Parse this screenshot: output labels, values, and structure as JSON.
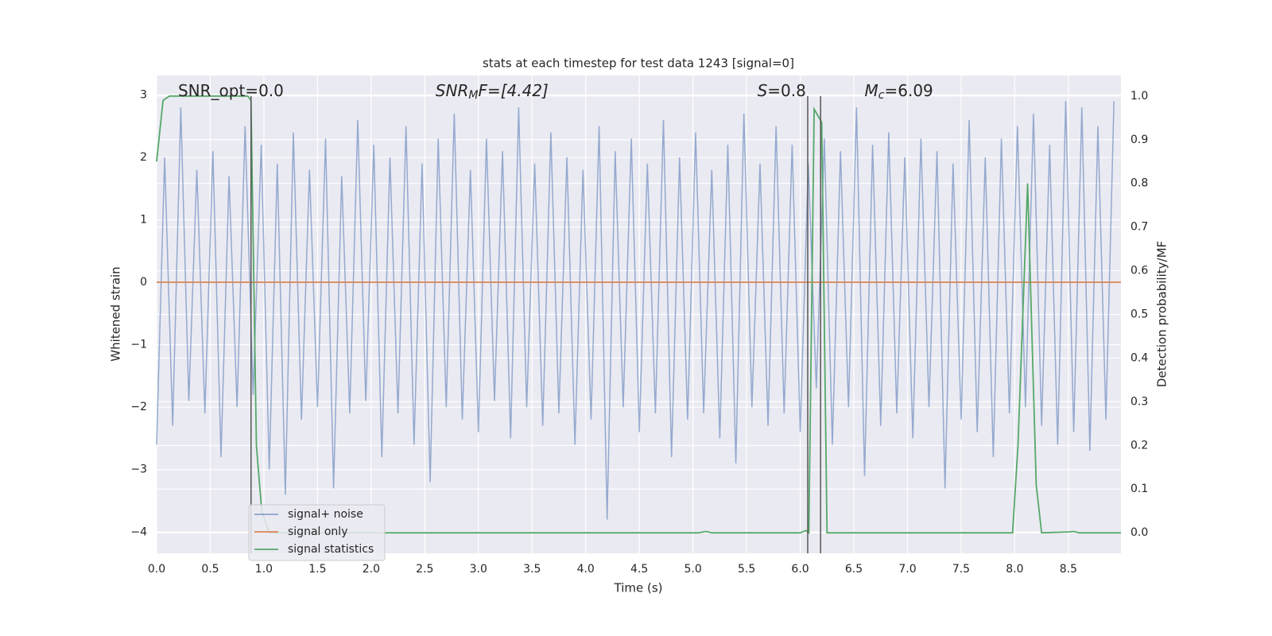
{
  "chart_data": {
    "type": "line",
    "title": "stats at each timestep for test data 1243 [signal=0]",
    "xlabel": "Time (s)",
    "ylabel": "Whitened strain",
    "y2label": "Detection probability/MF",
    "xlim": [
      0,
      8.99
    ],
    "ylim": [
      -4.34,
      3.31
    ],
    "y2lim": [
      -0.047,
      1.047
    ],
    "xticks": [
      {
        "value": 0,
        "label": "0.0"
      },
      0.5,
      {
        "value": 1,
        "label": "1.0"
      },
      1.5,
      {
        "value": 2,
        "label": "2.0"
      },
      2.5,
      {
        "value": 3,
        "label": "3.0"
      },
      3.5,
      {
        "value": 4,
        "label": "4.0"
      },
      4.5,
      {
        "value": 5,
        "label": "5.0"
      },
      5.5,
      {
        "value": 6,
        "label": "6.0"
      },
      6.5,
      {
        "value": 7,
        "label": "7.0"
      },
      7.5,
      {
        "value": 8,
        "label": "8.0"
      },
      8.5
    ],
    "yticks": [
      {
        "value": -4,
        "label": "−4"
      },
      {
        "value": -3,
        "label": "−3"
      },
      {
        "value": -2,
        "label": "−2"
      },
      {
        "value": -1,
        "label": "−1"
      },
      0,
      1,
      2,
      3
    ],
    "y2ticks": [
      {
        "value": 0,
        "label": "0.0"
      },
      0.1,
      0.2,
      0.3,
      0.4,
      0.5,
      0.6,
      0.7,
      0.8,
      0.9,
      {
        "value": 1,
        "label": "1.0"
      }
    ],
    "grid": true,
    "legend": "lower left",
    "annotations": [
      {
        "base": "SNR_opt=0.0",
        "sub": "",
        "tail": "",
        "x": 0.2
      },
      {
        "base": "SNR",
        "sub": "M",
        "tail": "F=[4.42]",
        "x": 2.6
      },
      {
        "base": "S",
        "sub": "",
        "tail": "=0.8",
        "x": 5.6
      },
      {
        "base": "M",
        "sub": "c",
        "tail": "=6.09",
        "x": 6.6
      }
    ],
    "vlines": [
      0.88,
      6.07,
      6.19
    ],
    "vline_color": "#555555",
    "series": [
      {
        "name": "signal+ noise",
        "color": "#4c72b0",
        "x": [
          0,
          0.075,
          0.15,
          0.225,
          0.3,
          0.375,
          0.45,
          0.525,
          0.6,
          0.675,
          0.75,
          0.825,
          0.9,
          0.975,
          1.05,
          1.125,
          1.2,
          1.275,
          1.35,
          1.425,
          1.5,
          1.575,
          1.65,
          1.725,
          1.8,
          1.875,
          1.95,
          2.025,
          2.1,
          2.175,
          2.25,
          2.325,
          2.4,
          2.475,
          2.55,
          2.625,
          2.7,
          2.775,
          2.85,
          2.925,
          3,
          3.075,
          3.15,
          3.225,
          3.3,
          3.375,
          3.45,
          3.525,
          3.6,
          3.675,
          3.75,
          3.825,
          3.9,
          3.975,
          4.05,
          4.125,
          4.2,
          4.275,
          4.35,
          4.425,
          4.5,
          4.575,
          4.65,
          4.725,
          4.8,
          4.875,
          4.95,
          5.025,
          5.1,
          5.175,
          5.25,
          5.325,
          5.4,
          5.475,
          5.55,
          5.625,
          5.7,
          5.775,
          5.85,
          5.925,
          6,
          6.075,
          6.15,
          6.225,
          6.3,
          6.375,
          6.45,
          6.525,
          6.6,
          6.675,
          6.75,
          6.825,
          6.9,
          6.975,
          7.05,
          7.125,
          7.2,
          7.275,
          7.35,
          7.425,
          7.5,
          7.575,
          7.65,
          7.725,
          7.8,
          7.875,
          7.95,
          8.025,
          8.1,
          8.175,
          8.25,
          8.325,
          8.4,
          8.475,
          8.55,
          8.625,
          8.7,
          8.775,
          8.85,
          8.925
        ],
        "values": [
          -2.6,
          2.0,
          -2.3,
          2.8,
          -1.9,
          1.8,
          -2.1,
          2.1,
          -2.8,
          1.7,
          -2.0,
          2.5,
          -1.8,
          2.2,
          -3.0,
          1.9,
          -3.4,
          2.4,
          -2.2,
          1.8,
          -2.0,
          2.3,
          -3.3,
          1.7,
          -2.1,
          2.6,
          -1.9,
          2.2,
          -2.8,
          2.0,
          -2.1,
          2.5,
          -2.6,
          1.9,
          -3.2,
          2.3,
          -2.0,
          2.7,
          -2.2,
          1.8,
          -2.4,
          2.3,
          -1.9,
          2.1,
          -2.5,
          2.8,
          -2.0,
          1.9,
          -2.3,
          2.4,
          -2.1,
          2.0,
          -2.6,
          1.8,
          -2.2,
          2.5,
          -3.8,
          2.1,
          -2.0,
          2.3,
          -2.4,
          1.9,
          -2.1,
          2.6,
          -2.8,
          2.0,
          -2.2,
          2.4,
          -2.1,
          1.8,
          -2.5,
          2.2,
          -2.9,
          2.7,
          -2.0,
          1.9,
          -2.3,
          2.5,
          -2.1,
          2.2,
          -2.4,
          1.9,
          -1.7,
          2.3,
          -2.6,
          2.1,
          -2.0,
          2.8,
          -3.1,
          2.2,
          -2.3,
          2.4,
          -2.1,
          2.0,
          -2.5,
          2.3,
          -2.0,
          2.1,
          -3.3,
          1.9,
          -2.2,
          2.6,
          -2.4,
          2.0,
          -2.8,
          2.3,
          -2.1,
          2.5,
          -2.0,
          2.7,
          -2.3,
          2.2,
          -2.6,
          2.9,
          -2.4,
          2.8,
          -2.7,
          2.5,
          -2.2,
          2.9
        ]
      },
      {
        "name": "signal only",
        "color": "#dd8452",
        "x": [
          0,
          8.99
        ],
        "values": [
          0,
          0
        ]
      },
      {
        "name": "signal statistics",
        "color": "#55a868",
        "axis": "y2",
        "x": [
          0,
          0.06,
          0.12,
          0.85,
          0.88,
          0.93,
          0.98,
          1.05,
          5.05,
          5.12,
          5.18,
          6.0,
          6.05,
          6.08,
          6.13,
          6.2,
          6.25,
          6.3,
          7.3,
          7.4,
          7.98,
          8.03,
          8.12,
          8.2,
          8.25,
          8.5,
          8.55,
          8.6,
          8.99
        ],
        "values": [
          0.85,
          0.99,
          1.0,
          1.0,
          0.99,
          0.2,
          0.05,
          0,
          0,
          0.003,
          0,
          0,
          0.005,
          0,
          0.97,
          0.94,
          0,
          0,
          0,
          0,
          0,
          0.2,
          0.8,
          0.11,
          0,
          0.002,
          0.003,
          0,
          0
        ]
      }
    ]
  }
}
